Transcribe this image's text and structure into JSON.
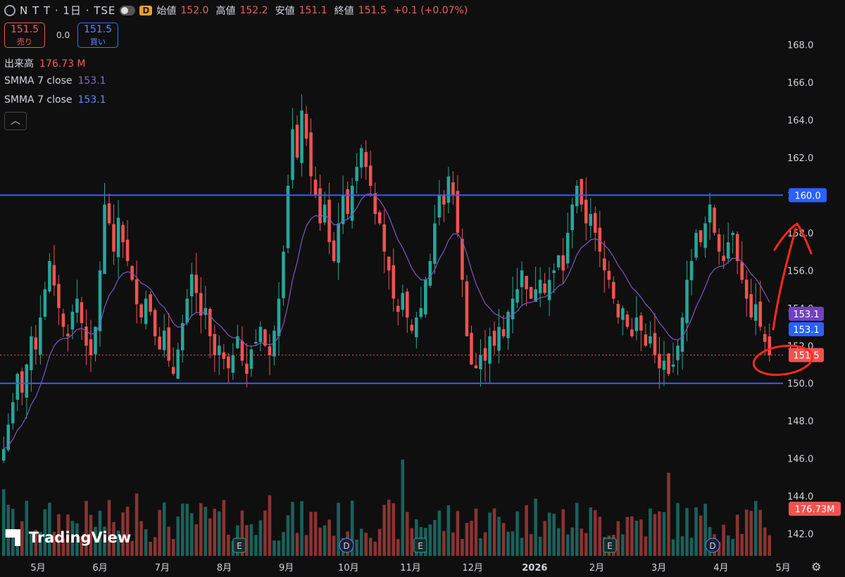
{
  "header": {
    "symbol": "N T T · 1日 · TSE",
    "badge": "D",
    "open_label": "始値",
    "open": "152.0",
    "high_label": "高値",
    "high": "152.2",
    "low_label": "安値",
    "low": "151.1",
    "close_label": "終値",
    "close": "151.5",
    "change": "+0.1 (+0.07%)"
  },
  "trade": {
    "sell_price": "151.5",
    "sell_label": "売り",
    "spread": "0.0",
    "buy_price": "151.5",
    "buy_label": "買い"
  },
  "indicators": {
    "volume_label": "出来高",
    "volume_value": "176.73 M",
    "smma1_label": "SMMA 7 close",
    "smma1_value": "153.1",
    "smma2_label": "SMMA 7 close",
    "smma2_value": "153.1"
  },
  "branding": {
    "name": "TradingView"
  },
  "icons": {
    "logo": "tradingview-logo-icon",
    "settings": "gear-icon",
    "collapse": "chevron-up-icon"
  },
  "colors": {
    "up": "#26a69a",
    "down": "#ef5350",
    "level": "#3d5afe",
    "smma": "#7e57c2",
    "background": "#0f0f0f"
  },
  "chart_data": {
    "type": "candlestick",
    "y_axis_ticks": [
      142.0,
      144.0,
      146.0,
      148.0,
      150.0,
      152.0,
      154.0,
      156.0,
      158.0,
      160.0,
      162.0,
      164.0,
      166.0,
      168.0
    ],
    "ylim": [
      141.2,
      170.0
    ],
    "x_axis_labels": [
      "5月",
      "6月",
      "7月",
      "8月",
      "9月",
      "10月",
      "11月",
      "12月",
      "2026",
      "2月",
      "3月",
      "4月",
      "5月"
    ],
    "horizontal_levels": [
      160.0,
      150.0
    ],
    "level_labels": [
      "160.0",
      "150.0"
    ],
    "last_price": "151.5",
    "last_volume_label": "176.73M",
    "smma_labels": [
      "153.1",
      "153.1"
    ],
    "event_markers": [
      {
        "label": "E",
        "type": "earnings",
        "date": "2025-08-08"
      },
      {
        "label": "D",
        "type": "dividend",
        "date": "2025-09-29"
      },
      {
        "label": "E",
        "type": "earnings",
        "date": "2025-11-07"
      },
      {
        "label": "E",
        "type": "earnings",
        "date": "2026-02-06"
      },
      {
        "label": "D",
        "type": "dividend",
        "date": "2026-03-30"
      }
    ],
    "closes_approx": [
      146.5,
      147.8,
      149.0,
      150.5,
      149.5,
      151.0,
      152.5,
      151.8,
      153.5,
      155.0,
      156.5,
      155.2,
      154.0,
      153.0,
      152.5,
      153.8,
      154.5,
      153.2,
      152.0,
      151.5,
      153.0,
      156.0,
      159.5,
      158.5,
      157.0,
      158.8,
      157.5,
      156.5,
      155.5,
      154.2,
      153.5,
      154.5,
      153.8,
      152.5,
      151.8,
      152.8,
      151.2,
      150.5,
      151.8,
      153.2,
      154.5,
      155.8,
      154.8,
      153.6,
      154.0,
      152.5,
      151.5,
      152.0,
      151.3,
      150.8,
      151.5,
      152.5,
      151.2,
      150.5,
      151.8,
      152.2,
      153.0,
      152.0,
      151.5,
      152.8,
      154.5,
      157.0,
      160.5,
      163.5,
      162.0,
      164.5,
      163.0,
      161.0,
      160.0,
      158.5,
      159.5,
      157.5,
      156.5,
      158.5,
      160.0,
      159.0,
      160.5,
      161.5,
      162.5,
      161.5,
      160.5,
      159.0,
      158.5,
      157.0,
      156.0,
      154.5,
      153.8,
      154.8,
      153.5,
      152.8,
      153.5,
      154.0,
      155.5,
      156.5,
      158.5,
      160.0,
      159.5,
      161.0,
      160.0,
      158.0,
      155.5,
      152.5,
      151.0,
      150.8,
      151.5,
      151.2,
      152.5,
      152.0,
      153.0,
      152.5,
      153.8,
      154.5,
      155.0,
      156.0,
      155.0,
      154.5,
      155.0,
      155.5,
      154.8,
      155.5,
      156.0,
      156.8,
      156.0,
      158.0,
      159.5,
      160.5,
      159.5,
      158.5,
      159.0,
      158.0,
      157.0,
      156.0,
      155.5,
      154.5,
      153.5,
      154.0,
      153.0,
      152.5,
      153.5,
      152.8,
      152.0,
      152.5,
      151.5,
      150.8,
      151.2,
      150.5,
      151.0,
      152.0,
      153.5,
      155.5,
      156.5,
      158.0,
      157.5,
      158.5,
      159.5,
      158.0,
      157.0,
      156.5,
      157.5,
      158.0,
      156.5,
      155.5,
      154.5,
      153.5,
      154.2,
      153.0,
      152.2,
      151.5
    ]
  }
}
